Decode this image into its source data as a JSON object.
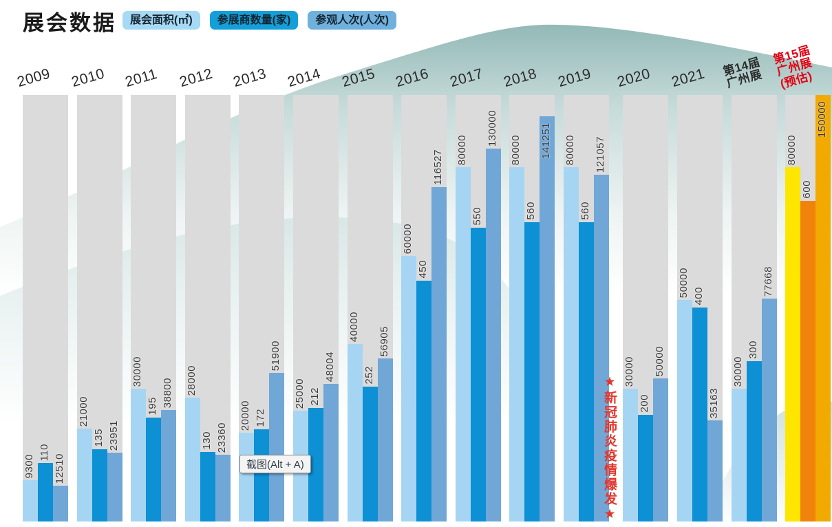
{
  "page_title": "展会数据",
  "legend": [
    {
      "label": "展会面积(㎡)",
      "color": "#a6d9f4"
    },
    {
      "label": "参展商数量(家)",
      "color": "#149fd9"
    },
    {
      "label": "参观人次(人次)",
      "color": "#6fb0dd"
    }
  ],
  "annotation": {
    "text": "★新冠肺炎疫情爆发★",
    "color": "#e5352b"
  },
  "tooltip": {
    "label": "截图(Alt + A)"
  },
  "chart_data": {
    "type": "bar",
    "title": "展会数据",
    "categories": [
      "2009",
      "2010",
      "2011",
      "2012",
      "2013",
      "2014",
      "2015",
      "2016",
      "2017",
      "2018",
      "2019",
      "2020",
      "2021",
      "第14届\n广州展",
      "第15届\n广州展\n(预估)"
    ],
    "series": [
      {
        "name": "展会面积(㎡)",
        "color": "#a6d5f3",
        "values": [
          9300,
          21000,
          30000,
          28000,
          20000,
          25000,
          40000,
          60000,
          80000,
          80000,
          80000,
          30000,
          50000,
          30000,
          80000
        ]
      },
      {
        "name": "参展商数量(家)",
        "color": "#0d90d4",
        "values": [
          110,
          135,
          195,
          130,
          172,
          212,
          252,
          450,
          550,
          560,
          560,
          200,
          400,
          300,
          600
        ]
      },
      {
        "name": "参观人次(人次)",
        "color": "#71a7d7",
        "values": [
          12510,
          23951,
          38800,
          23360,
          51900,
          48004,
          56905,
          116527,
          130000,
          141251,
          121057,
          50000,
          35163,
          77668,
          150000
        ]
      }
    ],
    "highlight": {
      "category": "第15届广州展(预估)",
      "category_index": 14,
      "colors": [
        "#ffe600",
        "#f0830c",
        "#f2a900"
      ],
      "label_color": "#e60012"
    },
    "annotation_between": {
      "after_category": "2019",
      "text": "★新冠肺炎疫情爆发★"
    },
    "grid": false,
    "legend_position": "top",
    "value_labels": "rotated-90-above-bars"
  }
}
